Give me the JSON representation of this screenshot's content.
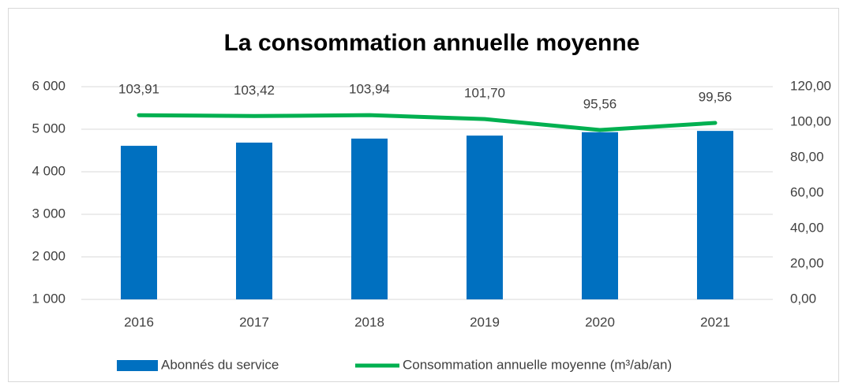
{
  "chart_data": {
    "type": "combo",
    "title": "La consommation annuelle moyenne",
    "categories": [
      "2016",
      "2017",
      "2018",
      "2019",
      "2020",
      "2021"
    ],
    "series": [
      {
        "name": "Abonnés du service",
        "type": "bar",
        "color": "#0070c0",
        "values": [
          4610,
          4685,
          4780,
          4850,
          4930,
          4960
        ]
      },
      {
        "name": "Consommation annuelle moyenne (m³/ab/an)",
        "type": "line",
        "axis": "y2",
        "color": "#00b050",
        "values": [
          103.91,
          103.42,
          103.94,
          101.7,
          95.56,
          99.56
        ],
        "value_labels": [
          "103,91",
          "103,42",
          "103,94",
          "101,70",
          "95,56",
          "99,56"
        ]
      }
    ],
    "ylim": [
      1000,
      6000
    ],
    "yticks": [
      {
        "value": 1000,
        "label": "1 000"
      },
      {
        "value": 2000,
        "label": "2 000"
      },
      {
        "value": 3000,
        "label": "3 000"
      },
      {
        "value": 4000,
        "label": "4 000"
      },
      {
        "value": 5000,
        "label": "5 000"
      },
      {
        "value": 6000,
        "label": "6 000"
      }
    ],
    "y2lim": [
      0,
      120
    ],
    "y2ticks": [
      {
        "value": 0,
        "label": "0,00"
      },
      {
        "value": 20,
        "label": "20,00"
      },
      {
        "value": 40,
        "label": "40,00"
      },
      {
        "value": 60,
        "label": "60,00"
      },
      {
        "value": 80,
        "label": "80,00"
      },
      {
        "value": 100,
        "label": "100,00"
      },
      {
        "value": 120,
        "label": "120,00"
      }
    ],
    "grid": true,
    "legend": "bottom"
  }
}
